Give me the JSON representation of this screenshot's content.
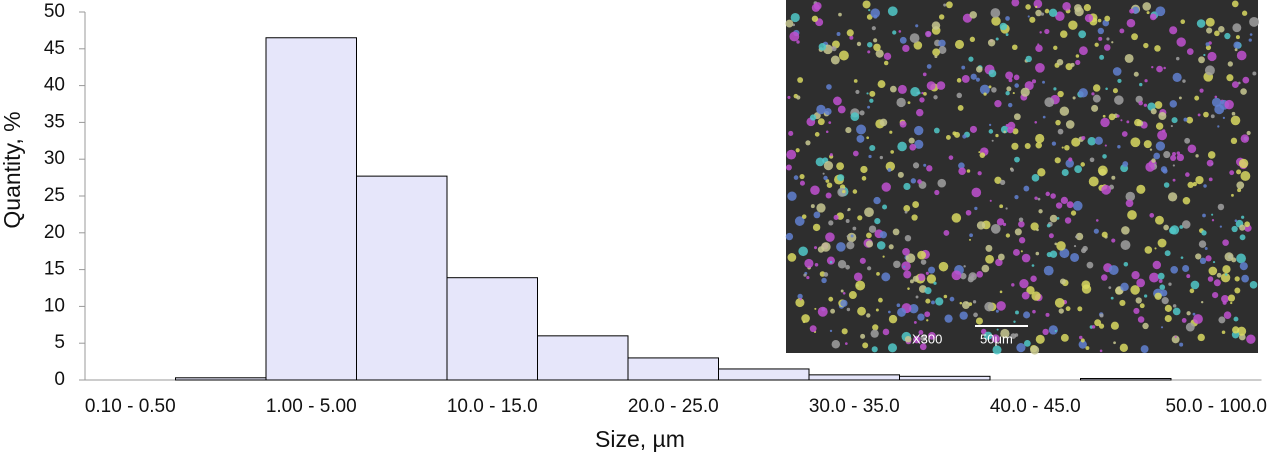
{
  "chart_data": {
    "type": "bar",
    "categories": [
      "0.10 - 0.50",
      null,
      "1.00 - 5.00",
      null,
      "10.0 - 15.0",
      null,
      "20.0 - 25.0",
      null,
      "30.0 - 35.0",
      null,
      "40.0 - 45.0",
      null,
      "50.0 - 100.0"
    ],
    "values": [
      0,
      0.3,
      46.5,
      27.7,
      13.9,
      6,
      3,
      1.5,
      0.7,
      0.5,
      0,
      0.2,
      0
    ],
    "color": "#e6e6fa",
    "ylim": [
      0,
      50
    ],
    "yticks": [
      0,
      5,
      10,
      15,
      20,
      25,
      30,
      35,
      40,
      45,
      50
    ],
    "xlabel": "Size, µm",
    "ylabel": "Quantity, %",
    "image_annotations": [
      "X300",
      "50μm"
    ]
  }
}
